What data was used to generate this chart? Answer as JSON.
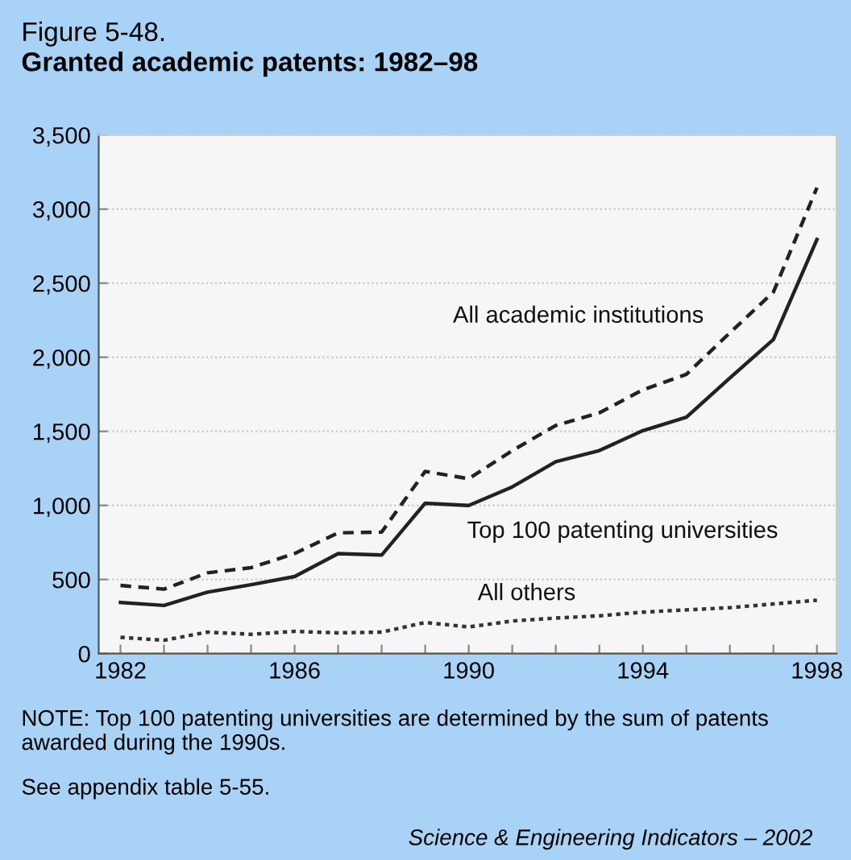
{
  "chart_data": {
    "type": "line",
    "title": "Figure 5-48.",
    "subtitle": "Granted academic patents: 1982–98",
    "x": [
      1982,
      1983,
      1984,
      1985,
      1986,
      1987,
      1988,
      1989,
      1990,
      1991,
      1992,
      1993,
      1994,
      1995,
      1996,
      1997,
      1998
    ],
    "series": [
      {
        "name": "All academic institutions",
        "color": "#222222",
        "line_style": "dashed",
        "values": [
          460,
          435,
          545,
          580,
          675,
          815,
          820,
          1230,
          1180,
          1370,
          1540,
          1625,
          1780,
          1885,
          2165,
          2440,
          3145
        ]
      },
      {
        "name": "Top 100 patenting universities",
        "color": "#222222",
        "line_style": "solid",
        "values": [
          345,
          325,
          415,
          465,
          520,
          675,
          665,
          1015,
          1000,
          1125,
          1295,
          1370,
          1505,
          1595,
          1860,
          2120,
          2795
        ]
      },
      {
        "name": "All others",
        "color": "#333333",
        "line_style": "dotted",
        "values": [
          110,
          90,
          145,
          130,
          150,
          140,
          145,
          210,
          180,
          220,
          240,
          255,
          280,
          295,
          310,
          335,
          360
        ]
      }
    ],
    "xlim": [
      1981.5,
      1998.45
    ],
    "xticks": [
      1982,
      {
        "value": 1983,
        "label": null
      },
      {
        "value": 1984,
        "label": null
      },
      {
        "value": 1985,
        "label": null
      },
      1986,
      {
        "value": 1987,
        "label": null
      },
      {
        "value": 1988,
        "label": null
      },
      {
        "value": 1989,
        "label": null
      },
      1990,
      {
        "value": 1991,
        "label": null
      },
      {
        "value": 1992,
        "label": null
      },
      {
        "value": 1993,
        "label": null
      },
      1994,
      {
        "value": 1995,
        "label": null
      },
      {
        "value": 1996,
        "label": null
      },
      {
        "value": 1997,
        "label": null
      },
      1998
    ],
    "ylim": [
      0,
      3500
    ],
    "yticks": [
      {
        "value": 0,
        "label": "0"
      },
      {
        "value": 500,
        "label": "500"
      },
      {
        "value": 1000,
        "label": "1,000"
      },
      {
        "value": 1500,
        "label": "1,500"
      },
      {
        "value": 2000,
        "label": "2,000"
      },
      {
        "value": 2500,
        "label": "2,500"
      },
      {
        "value": 3000,
        "label": "3,000"
      },
      {
        "value": 3500,
        "label": "3,500"
      }
    ],
    "grid": "y",
    "legend": false,
    "marker": "none",
    "annotations": [
      "NOTE: Top 100 patenting universities are determined by the sum of patents awarded during the 1990s.",
      "See appendix table 5-55.",
      "Science & Engineering Indicators – 2002"
    ]
  }
}
